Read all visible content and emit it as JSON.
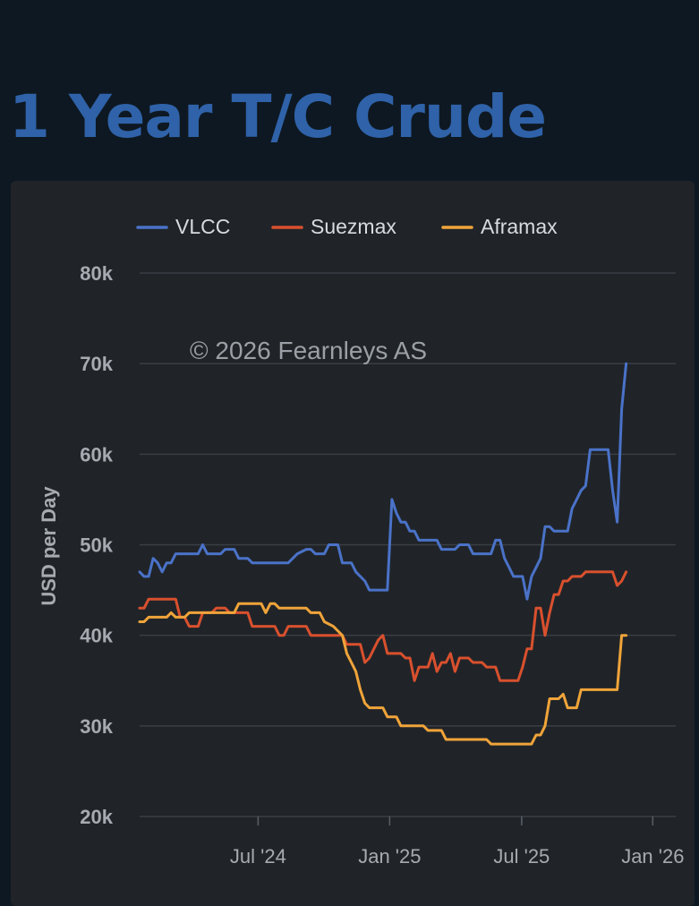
{
  "page": {
    "title": "1 Year T/C Crude"
  },
  "chart_data": {
    "type": "line",
    "title": "1 Year T/C Crude",
    "ylabel": "USD per Day",
    "xlabel": "",
    "ylim": [
      20000,
      80000
    ],
    "yticks": [
      20000,
      30000,
      40000,
      50000,
      60000,
      70000,
      80000
    ],
    "ytick_labels": [
      "20k",
      "30k",
      "40k",
      "50k",
      "60k",
      "70k",
      "80k"
    ],
    "xlim_week": [
      0,
      119
    ],
    "xticks": [
      {
        "label": "Jul '24",
        "week": 26.3
      },
      {
        "label": "Jan '25",
        "week": 55.5
      },
      {
        "label": "Jul '25",
        "week": 84.8
      },
      {
        "label": "Jan '26",
        "week": 113.9
      }
    ],
    "watermark": "© 2026 Fearnleys AS",
    "legend_position": "top-left",
    "series": [
      {
        "name": "VLCC",
        "color": "#4a72c8",
        "points": [
          [
            0,
            47000
          ],
          [
            1,
            46500
          ],
          [
            2,
            46500
          ],
          [
            3,
            48500
          ],
          [
            4,
            48000
          ],
          [
            5,
            47000
          ],
          [
            6,
            48000
          ],
          [
            7,
            48000
          ],
          [
            8,
            49000
          ],
          [
            9,
            49000
          ],
          [
            11,
            49000
          ],
          [
            13,
            49000
          ],
          [
            14,
            50000
          ],
          [
            15,
            49000
          ],
          [
            16,
            49000
          ],
          [
            18,
            49000
          ],
          [
            19,
            49500
          ],
          [
            21,
            49500
          ],
          [
            22,
            48500
          ],
          [
            24,
            48500
          ],
          [
            25,
            48000
          ],
          [
            30,
            48000
          ],
          [
            33,
            48000
          ],
          [
            35,
            49000
          ],
          [
            37,
            49500
          ],
          [
            38,
            49500
          ],
          [
            39,
            49000
          ],
          [
            41,
            49000
          ],
          [
            42,
            50000
          ],
          [
            44,
            50000
          ],
          [
            45,
            48000
          ],
          [
            47,
            48000
          ],
          [
            48,
            47000
          ],
          [
            50,
            46000
          ],
          [
            51,
            45000
          ],
          [
            55,
            45000
          ],
          [
            56,
            55000
          ],
          [
            57,
            53500
          ],
          [
            58,
            52500
          ],
          [
            59,
            52500
          ],
          [
            60,
            51500
          ],
          [
            61,
            51500
          ],
          [
            62,
            50500
          ],
          [
            66,
            50500
          ],
          [
            67,
            49500
          ],
          [
            70,
            49500
          ],
          [
            71,
            50000
          ],
          [
            73,
            50000
          ],
          [
            74,
            49000
          ],
          [
            78,
            49000
          ],
          [
            79,
            50500
          ],
          [
            80,
            50500
          ],
          [
            81,
            48500
          ],
          [
            82,
            47500
          ],
          [
            83,
            46500
          ],
          [
            85,
            46500
          ],
          [
            86,
            44000
          ],
          [
            87,
            46500
          ],
          [
            88,
            47500
          ],
          [
            89,
            48500
          ],
          [
            90,
            52000
          ],
          [
            91,
            52000
          ],
          [
            92,
            51500
          ],
          [
            95,
            51500
          ],
          [
            96,
            54000
          ],
          [
            97,
            55000
          ],
          [
            98,
            56000
          ],
          [
            99,
            56500
          ],
          [
            100,
            60500
          ],
          [
            104,
            60500
          ],
          [
            105,
            56000
          ],
          [
            106,
            52500
          ],
          [
            107,
            65000
          ],
          [
            108,
            70000
          ]
        ]
      },
      {
        "name": "Suezmax",
        "color": "#d9502e",
        "points": [
          [
            0,
            43000
          ],
          [
            1,
            43000
          ],
          [
            2,
            44000
          ],
          [
            8,
            44000
          ],
          [
            9,
            42000
          ],
          [
            10,
            42000
          ],
          [
            11,
            41000
          ],
          [
            13,
            41000
          ],
          [
            14,
            42500
          ],
          [
            16,
            42500
          ],
          [
            17,
            43000
          ],
          [
            19,
            43000
          ],
          [
            20,
            42500
          ],
          [
            24,
            42500
          ],
          [
            25,
            41000
          ],
          [
            30,
            41000
          ],
          [
            31,
            40000
          ],
          [
            32,
            40000
          ],
          [
            33,
            41000
          ],
          [
            37,
            41000
          ],
          [
            38,
            40000
          ],
          [
            45,
            40000
          ],
          [
            46,
            39000
          ],
          [
            49,
            39000
          ],
          [
            50,
            37000
          ],
          [
            51,
            37500
          ],
          [
            52,
            38500
          ],
          [
            53,
            39500
          ],
          [
            54,
            40000
          ],
          [
            55,
            38000
          ],
          [
            58,
            38000
          ],
          [
            59,
            37500
          ],
          [
            60,
            37500
          ],
          [
            61,
            35000
          ],
          [
            62,
            36500
          ],
          [
            64,
            36500
          ],
          [
            65,
            38000
          ],
          [
            66,
            36000
          ],
          [
            67,
            37000
          ],
          [
            68,
            37000
          ],
          [
            69,
            38000
          ],
          [
            70,
            36000
          ],
          [
            71,
            37500
          ],
          [
            73,
            37500
          ],
          [
            74,
            37000
          ],
          [
            76,
            37000
          ],
          [
            77,
            36500
          ],
          [
            79,
            36500
          ],
          [
            80,
            35000
          ],
          [
            84,
            35000
          ],
          [
            85,
            36500
          ],
          [
            86,
            38500
          ],
          [
            87,
            38500
          ],
          [
            88,
            43000
          ],
          [
            89,
            43000
          ],
          [
            90,
            40000
          ],
          [
            91,
            42500
          ],
          [
            92,
            44500
          ],
          [
            93,
            44500
          ],
          [
            94,
            46000
          ],
          [
            95,
            46000
          ],
          [
            96,
            46500
          ],
          [
            98,
            46500
          ],
          [
            99,
            47000
          ],
          [
            104,
            47000
          ],
          [
            105,
            47000
          ],
          [
            106,
            45500
          ],
          [
            107,
            46000
          ],
          [
            108,
            47000
          ]
        ]
      },
      {
        "name": "Aframax",
        "color": "#f0a43a",
        "points": [
          [
            0,
            41500
          ],
          [
            1,
            41500
          ],
          [
            2,
            42000
          ],
          [
            6,
            42000
          ],
          [
            7,
            42500
          ],
          [
            8,
            42000
          ],
          [
            10,
            42000
          ],
          [
            11,
            42500
          ],
          [
            16,
            42500
          ],
          [
            17,
            42500
          ],
          [
            21,
            42500
          ],
          [
            22,
            43500
          ],
          [
            27,
            43500
          ],
          [
            28,
            42500
          ],
          [
            29,
            43500
          ],
          [
            30,
            43500
          ],
          [
            31,
            43000
          ],
          [
            37,
            43000
          ],
          [
            38,
            42500
          ],
          [
            40,
            42500
          ],
          [
            41,
            41500
          ],
          [
            43,
            41000
          ],
          [
            45,
            40000
          ],
          [
            46,
            38000
          ],
          [
            47,
            37000
          ],
          [
            48,
            36000
          ],
          [
            49,
            34000
          ],
          [
            50,
            32500
          ],
          [
            51,
            32000
          ],
          [
            54,
            32000
          ],
          [
            55,
            31000
          ],
          [
            57,
            31000
          ],
          [
            58,
            30000
          ],
          [
            63,
            30000
          ],
          [
            64,
            29500
          ],
          [
            67,
            29500
          ],
          [
            68,
            28500
          ],
          [
            77,
            28500
          ],
          [
            78,
            28000
          ],
          [
            87,
            28000
          ],
          [
            88,
            29000
          ],
          [
            89,
            29000
          ],
          [
            90,
            30000
          ],
          [
            91,
            33000
          ],
          [
            93,
            33000
          ],
          [
            94,
            33500
          ],
          [
            95,
            32000
          ],
          [
            97,
            32000
          ],
          [
            98,
            34000
          ],
          [
            103,
            34000
          ],
          [
            104,
            34000
          ],
          [
            105,
            34000
          ],
          [
            106,
            34000
          ],
          [
            107,
            40000
          ],
          [
            108,
            40000
          ]
        ]
      }
    ]
  }
}
